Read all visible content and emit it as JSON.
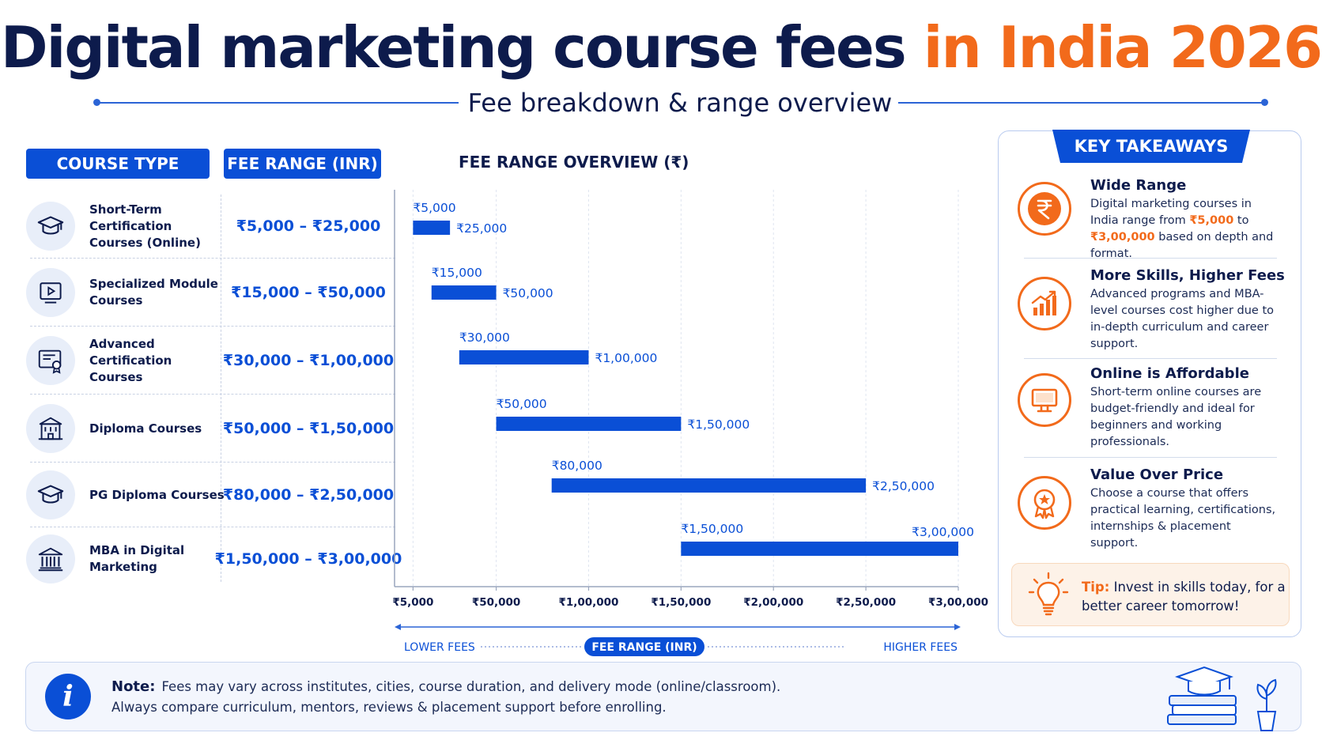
{
  "header": {
    "title_main": "Digital marketing course fees",
    "title_accent": "in India 2026",
    "subtitle": "Fee breakdown & range overview"
  },
  "table": {
    "col_course_type": "COURSE TYPE",
    "col_fee_range": "FEE RANGE (INR)",
    "rows": [
      {
        "name": "Short-Term Certification Courses (Online)",
        "fee": "₹5,000 – ₹25,000",
        "icon": "graduation-cap-icon"
      },
      {
        "name": "Specialized Module Courses",
        "fee": "₹15,000 – ₹50,000",
        "icon": "video-play-icon"
      },
      {
        "name": "Advanced Certification Courses",
        "fee": "₹30,000 – ₹1,00,000",
        "icon": "certificate-icon"
      },
      {
        "name": "Diploma Courses",
        "fee": "₹50,000 – ₹1,50,000",
        "icon": "institution-icon"
      },
      {
        "name": "PG Diploma Courses",
        "fee": "₹80,000 – ₹2,50,000",
        "icon": "graduation-cap-icon"
      },
      {
        "name": "MBA in Digital Marketing",
        "fee": "₹1,50,000 – ₹3,00,000",
        "icon": "bank-building-icon"
      }
    ]
  },
  "chart_data": {
    "type": "bar",
    "title": "FEE RANGE OVERVIEW (₹)",
    "orientation": "horizontal-range",
    "categories": [
      "Short-Term Certification Courses (Online)",
      "Specialized Module Courses",
      "Advanced Certification Courses",
      "Diploma Courses",
      "PG Diploma Courses",
      "MBA in Digital Marketing"
    ],
    "series": [
      {
        "low": [
          5000,
          15000,
          30000,
          50000,
          80000,
          150000
        ],
        "high": [
          25000,
          50000,
          100000,
          150000,
          250000,
          300000
        ]
      }
    ],
    "low_labels": [
      "₹5,000",
      "₹15,000",
      "₹30,000",
      "₹50,000",
      "₹80,000",
      "₹1,50,000"
    ],
    "high_labels": [
      "₹25,000",
      "₹50,000",
      "₹1,00,000",
      "₹1,50,000",
      "₹2,50,000",
      "₹3,00,000"
    ],
    "x_ticks": [
      5000,
      50000,
      100000,
      150000,
      200000,
      250000,
      300000
    ],
    "x_tick_labels": [
      "₹5,000",
      "₹50,000",
      "₹1,00,000",
      "₹1,50,000",
      "₹2,00,000",
      "₹2,50,000",
      "₹3,00,000"
    ],
    "xlim": [
      -5000,
      300000
    ],
    "grid": true,
    "bar_color": "#0a4fd6",
    "axis_caption": {
      "left": "LOWER FEES",
      "center": "FEE RANGE (INR)",
      "right": "HIGHER FEES"
    }
  },
  "takeaways": {
    "header": "KEY TAKEAWAYS",
    "items": [
      {
        "title": "Wide Range",
        "text_1": "Digital marketing courses in India range from ",
        "hl_1": "₹5,000",
        "text_2": " to ",
        "hl_2": "₹3,00,000",
        "text_3": " based on depth and format.",
        "icon": "rupee-icon"
      },
      {
        "title": "More Skills, Higher Fees",
        "text": "Advanced programs and MBA-level courses cost higher due to in-depth curriculum and career support.",
        "icon": "growth-chart-icon"
      },
      {
        "title": "Online is Affordable",
        "text": "Short-term online courses are budget-friendly and ideal for beginners and working professionals.",
        "icon": "monitor-icon"
      },
      {
        "title": "Value Over Price",
        "text": "Choose a course that offers practical learning, certifications, internships & placement support.",
        "icon": "award-badge-icon"
      }
    ],
    "tip_label": "Tip:",
    "tip_text": " Invest in skills today, for a better career tomorrow!"
  },
  "note": {
    "label": "Note:",
    "line1": "Fees may vary across institutes, cities, course duration, and delivery mode (online/classroom).",
    "line2": "Always compare curriculum, mentors, reviews & placement support before enrolling."
  },
  "colors": {
    "navy": "#0d1b4c",
    "blue": "#0a4fd6",
    "orange": "#f26a1b"
  }
}
